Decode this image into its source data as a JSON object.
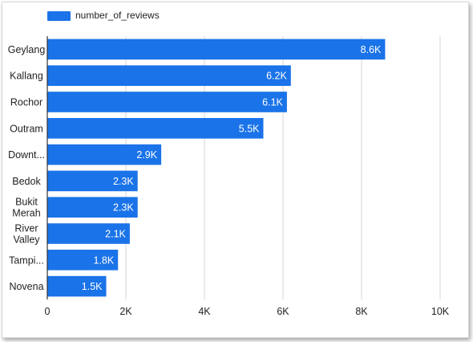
{
  "chart_data": {
    "type": "bar",
    "orientation": "horizontal",
    "categories": [
      [
        "Geylang"
      ],
      [
        "Kallang"
      ],
      [
        "Rochor"
      ],
      [
        "Outram"
      ],
      [
        "Downt..."
      ],
      [
        "Bedok"
      ],
      [
        "Bukit",
        "Merah"
      ],
      [
        "River",
        "Valley"
      ],
      [
        "Tampi..."
      ],
      [
        "Novena"
      ]
    ],
    "series": [
      {
        "name": "number_of_reviews",
        "values": [
          8600,
          6200,
          6100,
          5500,
          2900,
          2300,
          2300,
          2100,
          1800,
          1500
        ],
        "data_labels": [
          "8.6K",
          "6.2K",
          "6.1K",
          "5.5K",
          "2.9K",
          "2.3K",
          "2.3K",
          "2.1K",
          "1.8K",
          "1.5K"
        ]
      }
    ],
    "x_ticks": [
      0,
      2000,
      4000,
      6000,
      8000,
      10000
    ],
    "x_tick_labels": [
      "0",
      "2K",
      "4K",
      "6K",
      "8K",
      "10K"
    ],
    "xlim": [
      0,
      10000
    ],
    "grid": true,
    "legend": "top-left"
  },
  "colors": {
    "bar": "#1a73e8",
    "grid": "#d6d6d6",
    "axis": "#333333",
    "text": "#222222",
    "label_in_bar": "#ffffff"
  }
}
